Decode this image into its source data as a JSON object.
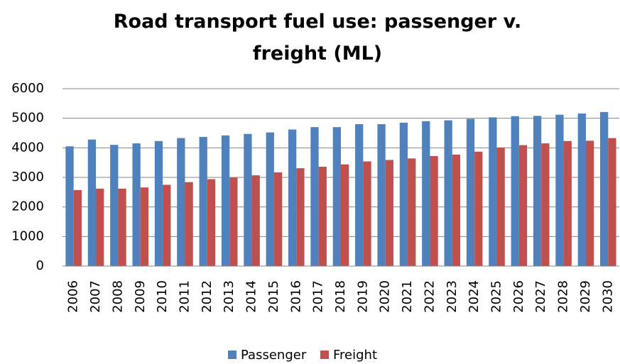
{
  "chart_data": {
    "type": "bar",
    "title": "Road transport fuel use: passenger v. freight (ML)",
    "categories": [
      "2006",
      "2007",
      "2008",
      "2009",
      "2010",
      "2011",
      "2012",
      "2013",
      "2014",
      "2015",
      "2016",
      "2017",
      "2018",
      "2019",
      "2020",
      "2021",
      "2022",
      "2023",
      "2024",
      "2025",
      "2026",
      "2027",
      "2028",
      "2029",
      "2030"
    ],
    "series": [
      {
        "name": "Passenger",
        "color": "#4f81bd",
        "values": [
          4050,
          4280,
          4100,
          4150,
          4230,
          4330,
          4370,
          4420,
          4470,
          4520,
          4620,
          4700,
          4700,
          4800,
          4800,
          4850,
          4900,
          4930,
          4980,
          5030,
          5070,
          5080,
          5120,
          5160,
          5210
        ]
      },
      {
        "name": "Freight",
        "color": "#c0504d",
        "values": [
          2570,
          2620,
          2620,
          2660,
          2750,
          2840,
          2940,
          2990,
          3070,
          3170,
          3310,
          3360,
          3440,
          3540,
          3590,
          3640,
          3720,
          3770,
          3870,
          4010,
          4090,
          4150,
          4230,
          4240,
          4330
        ]
      }
    ],
    "ylim": [
      0,
      6000
    ],
    "yticks": [
      0,
      1000,
      2000,
      3000,
      4000,
      5000,
      6000
    ],
    "grid": true,
    "legend": "bottom"
  }
}
